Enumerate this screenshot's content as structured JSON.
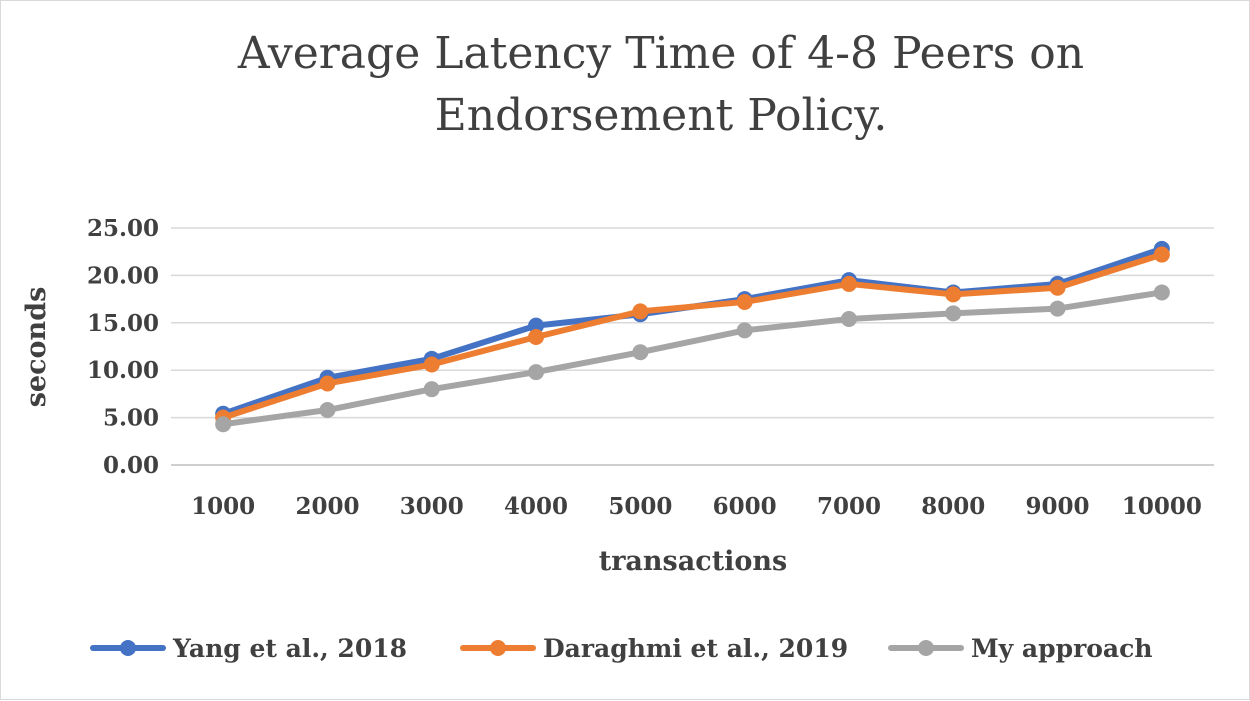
{
  "chart_data": {
    "type": "line",
    "title_lines": [
      "Average Latency Time of 4-8 Peers on",
      "Endorsement Policy."
    ],
    "xlabel": "transactions",
    "ylabel": "seconds",
    "categories": [
      "1000",
      "2000",
      "3000",
      "4000",
      "5000",
      "6000",
      "7000",
      "8000",
      "9000",
      "10000"
    ],
    "ylim": [
      0,
      25
    ],
    "yticks": [
      "0.00",
      "5.00",
      "10.00",
      "15.00",
      "20.00",
      "25.00"
    ],
    "grid": true,
    "legend_position": "bottom",
    "series": [
      {
        "name": "Yang et al., 2018",
        "color": "#4472c4",
        "values": [
          5.4,
          9.2,
          11.2,
          14.7,
          15.9,
          17.5,
          19.5,
          18.2,
          19.1,
          22.8
        ]
      },
      {
        "name": "Daraghmi et al., 2019",
        "color": "#ed7d31",
        "values": [
          5.0,
          8.6,
          10.6,
          13.5,
          16.2,
          17.2,
          19.1,
          18.0,
          18.7,
          22.2
        ]
      },
      {
        "name": "My approach",
        "color": "#a5a5a5",
        "values": [
          4.3,
          5.8,
          8.0,
          9.8,
          11.9,
          14.2,
          15.4,
          16.0,
          16.5,
          18.2
        ]
      }
    ]
  }
}
